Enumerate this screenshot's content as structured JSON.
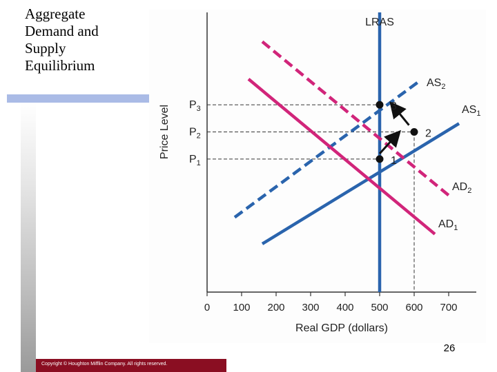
{
  "slide": {
    "title_lines": [
      "Aggregate",
      "Demand and",
      "Supply",
      "Equilibrium"
    ],
    "page_number": "26",
    "copyright": "Copyright © Houghton Mifflin Company. All rights reserved.",
    "colors": {
      "accent_bar": "#aabbe6",
      "copyright_bar": "#8a0e22"
    }
  },
  "chart_data": {
    "type": "line",
    "xlabel": "Real GDP (dollars)",
    "ylabel": "Price Level",
    "x_ticks": [
      0,
      100,
      200,
      300,
      400,
      500,
      600,
      700
    ],
    "xlim": [
      0,
      780
    ],
    "price_levels": [
      {
        "name": "P3",
        "sub": "3",
        "value": 3
      },
      {
        "name": "P2",
        "sub": "2",
        "value": 2
      },
      {
        "name": "P1",
        "sub": "1",
        "value": 1
      }
    ],
    "ylim": [
      -3.91,
      6.41
    ],
    "series": [
      {
        "name": "LRAS",
        "label": "LRAS",
        "color": "#2a64ad",
        "style": "solid",
        "points": [
          [
            500,
            -3.91
          ],
          [
            500,
            6.41
          ]
        ]
      },
      {
        "name": "AS1",
        "label": "AS",
        "sub": "1",
        "color": "#2a64ad",
        "style": "solid",
        "points": [
          [
            160,
            -2.13
          ],
          [
            730,
            2.31
          ]
        ]
      },
      {
        "name": "AS2",
        "label": "AS",
        "sub": "2",
        "color": "#2a64ad",
        "style": "dashed",
        "points": [
          [
            80,
            -1.15
          ],
          [
            620,
            3.92
          ]
        ]
      },
      {
        "name": "AD1",
        "label": "AD",
        "sub": "1",
        "color": "#d1257a",
        "style": "solid",
        "points": [
          [
            120,
            3.95
          ],
          [
            660,
            -1.77
          ]
        ]
      },
      {
        "name": "AD2",
        "label": "AD",
        "sub": "2",
        "color": "#d1257a",
        "style": "dashed",
        "points": [
          [
            160,
            5.33
          ],
          [
            700,
            -0.34
          ]
        ]
      }
    ],
    "equilibria": [
      {
        "label": "1",
        "x": 500,
        "y": 1
      },
      {
        "label": "2",
        "x": 600,
        "y": 2
      },
      {
        "label": "3",
        "x": 500,
        "y": 3
      }
    ],
    "arrows": [
      {
        "from": [
          500,
          1.2
        ],
        "to": [
          550,
          1.9
        ]
      },
      {
        "from": [
          585,
          2.25
        ],
        "to": [
          540,
          2.95
        ]
      }
    ],
    "grid": false,
    "legend": "none"
  }
}
